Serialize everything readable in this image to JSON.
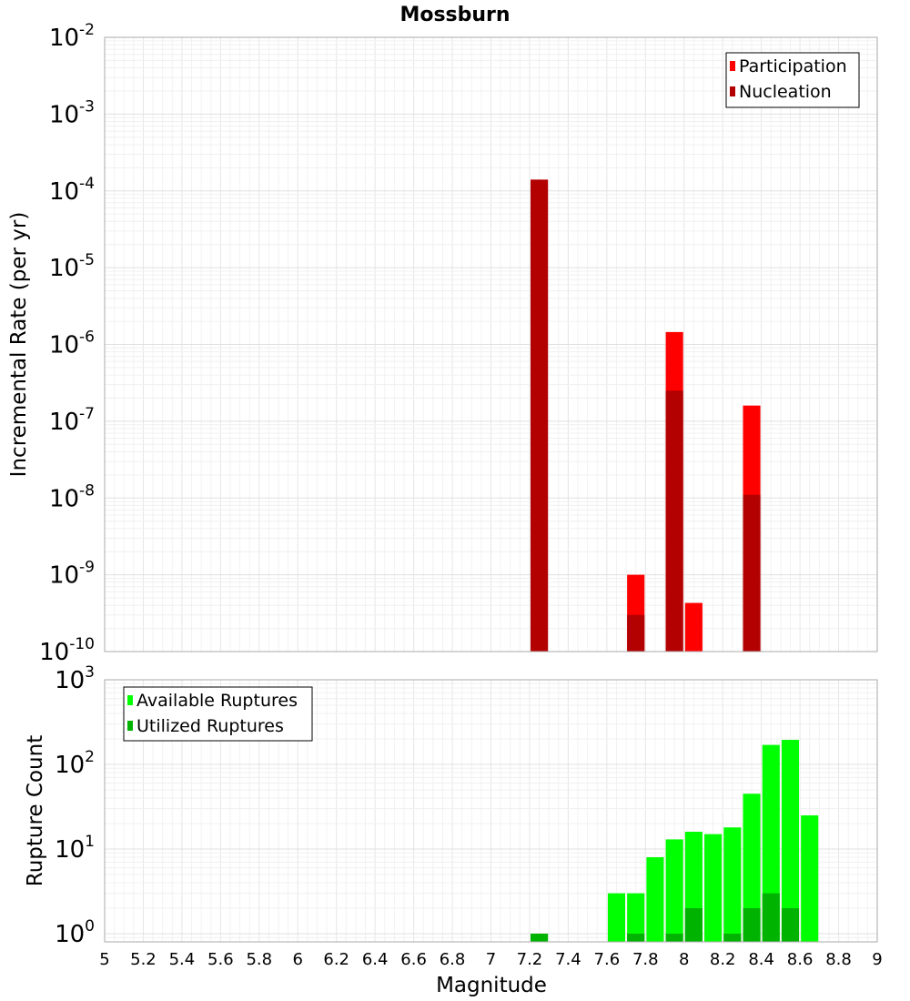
{
  "chart_data": [
    {
      "type": "bar",
      "title": "Mossburn",
      "xlabel": "",
      "ylabel": "Incremental Rate (per yr)",
      "yscale": "log",
      "ylim": [
        1e-10,
        0.01
      ],
      "xlim": [
        5,
        9
      ],
      "bar_width": 0.09,
      "grid": true,
      "legend_position": "top-right",
      "series": [
        {
          "name": "Participation",
          "color": "#ff0000",
          "x": [
            7.25,
            7.75,
            7.95,
            8.05,
            8.35
          ],
          "values": [
            0.00014,
            1e-09,
            1.45e-06,
            4.3e-10,
            1.6e-07
          ]
        },
        {
          "name": "Nucleation",
          "color": "#b30000",
          "x": [
            7.25,
            7.75,
            7.95,
            8.35
          ],
          "values": [
            0.00014,
            3e-10,
            2.5e-07,
            1.1e-08
          ]
        }
      ]
    },
    {
      "type": "bar",
      "title": "",
      "xlabel": "Magnitude",
      "ylabel": "Rupture Count",
      "yscale": "log",
      "ylim": [
        0.8,
        1000
      ],
      "xlim": [
        5,
        9
      ],
      "bar_width": 0.09,
      "grid": true,
      "legend_position": "top-left",
      "x_ticks": [
        "5",
        "5.2",
        "5.4",
        "5.6",
        "5.8",
        "6",
        "6.2",
        "6.4",
        "6.6",
        "6.8",
        "7",
        "7.2",
        "7.4",
        "7.6",
        "7.8",
        "8",
        "8.2",
        "8.4",
        "8.6",
        "8.8",
        "9"
      ],
      "series": [
        {
          "name": "Available Ruptures",
          "color": "#00ff00",
          "x": [
            7.25,
            7.65,
            7.75,
            7.85,
            7.95,
            8.05,
            8.15,
            8.25,
            8.35,
            8.45,
            8.55,
            8.65
          ],
          "values": [
            1,
            3,
            3,
            8,
            13,
            16,
            15,
            18,
            45,
            170,
            195,
            25
          ]
        },
        {
          "name": "Utilized Ruptures",
          "color": "#00b300",
          "x": [
            7.25,
            7.75,
            7.95,
            8.05,
            8.25,
            8.35,
            8.45,
            8.55
          ],
          "values": [
            1,
            1,
            1,
            2,
            1,
            2,
            3,
            2
          ]
        }
      ]
    }
  ]
}
